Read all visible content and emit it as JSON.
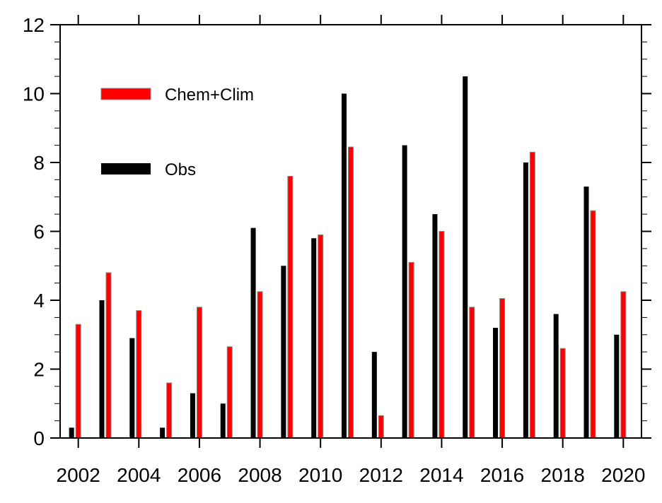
{
  "chart_data": {
    "type": "bar",
    "title": "",
    "xlabel": "",
    "ylabel": "",
    "ylim": [
      0,
      12
    ],
    "xlim": [
      2001.4,
      2020.6
    ],
    "yticks": [
      "0",
      "2",
      "4",
      "6",
      "8",
      "10",
      "12"
    ],
    "xticks": [
      "2002",
      "2004",
      "2006",
      "2008",
      "2010",
      "2012",
      "2014",
      "2016",
      "2018",
      "2020"
    ],
    "legend_placement": "top-left",
    "categories": [
      2002,
      2003,
      2004,
      2005,
      2006,
      2007,
      2008,
      2009,
      2010,
      2011,
      2012,
      2013,
      2014,
      2015,
      2016,
      2017,
      2018,
      2019,
      2020
    ],
    "series": [
      {
        "name": "Obs",
        "color": "#000000",
        "values": [
          0.3,
          4.0,
          2.9,
          0.3,
          1.3,
          1.0,
          6.1,
          5.0,
          5.8,
          10.0,
          2.5,
          8.5,
          6.5,
          10.5,
          3.2,
          8.0,
          3.6,
          7.3,
          3.0
        ]
      },
      {
        "name": "Chem+Clim",
        "color": "#ff0000",
        "values": [
          3.3,
          4.8,
          3.7,
          1.6,
          3.8,
          2.65,
          4.25,
          7.6,
          5.9,
          8.45,
          0.65,
          5.1,
          6.0,
          3.8,
          4.05,
          8.3,
          2.6,
          6.6,
          4.25
        ]
      }
    ]
  }
}
